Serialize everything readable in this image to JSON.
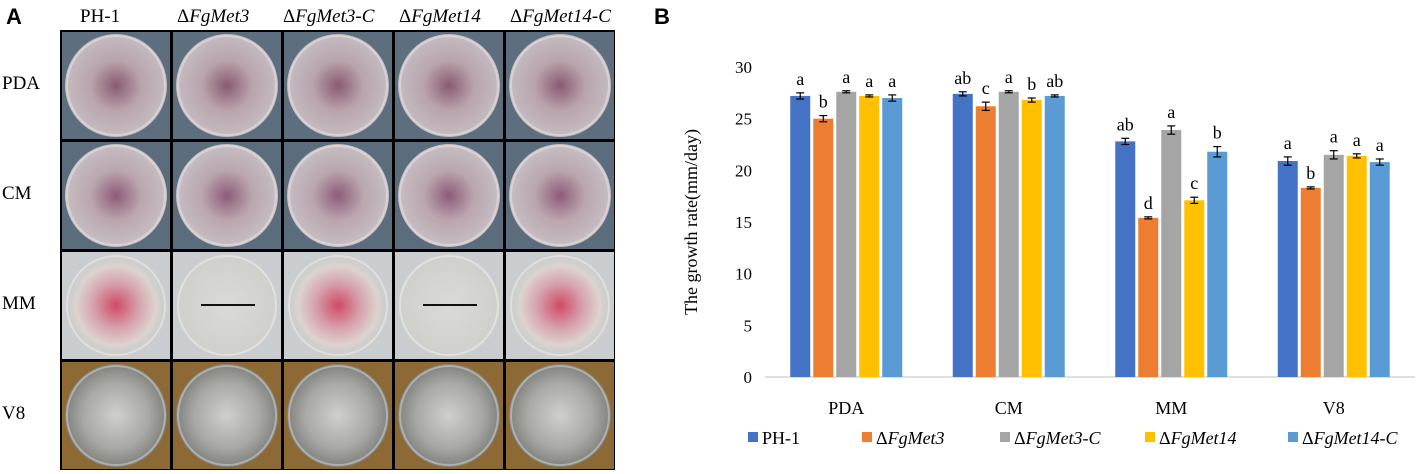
{
  "panel_a": {
    "letter": "A",
    "columns": [
      {
        "prefix": "",
        "name": "PH-1"
      },
      {
        "prefix": "Δ",
        "name": "FgMet3"
      },
      {
        "prefix": "Δ",
        "name": "FgMet3-C"
      },
      {
        "prefix": "Δ",
        "name": "FgMet14"
      },
      {
        "prefix": "Δ",
        "name": "FgMet14-C"
      }
    ],
    "rows": [
      "PDA",
      "CM",
      "MM",
      "V8"
    ]
  },
  "panel_b": {
    "letter": "B",
    "chart_data": {
      "type": "bar",
      "ylabel": "The growth rate(mm/day)",
      "xlabel": "",
      "ylim": [
        0,
        30
      ],
      "yticks": [
        0,
        5,
        10,
        15,
        20,
        25,
        30
      ],
      "categories": [
        "PDA",
        "CM",
        "MM",
        "V8"
      ],
      "legend_position": "bottom",
      "series": [
        {
          "name": "PH-1",
          "italic": false,
          "color": "#4472C4",
          "values": [
            27.2,
            27.4,
            22.8,
            20.9
          ],
          "errors": [
            0.3,
            0.2,
            0.3,
            0.4
          ],
          "letters": [
            "a",
            "ab",
            "ab",
            "a"
          ]
        },
        {
          "name": "ΔFgMet3",
          "italic": true,
          "color": "#ED7D31",
          "values": [
            25.0,
            26.2,
            15.4,
            18.3
          ],
          "errors": [
            0.3,
            0.4,
            0.1,
            0.1
          ],
          "letters": [
            "b",
            "c",
            "d",
            "b"
          ]
        },
        {
          "name": "ΔFgMet3-C",
          "italic": true,
          "color": "#A5A5A5",
          "values": [
            27.6,
            27.6,
            23.9,
            21.5
          ],
          "errors": [
            0.1,
            0.1,
            0.4,
            0.4
          ],
          "letters": [
            "a",
            "a",
            "a",
            "a"
          ]
        },
        {
          "name": "ΔFgMet14",
          "italic": true,
          "color": "#FFC000",
          "values": [
            27.2,
            26.8,
            17.1,
            21.4
          ],
          "errors": [
            0.1,
            0.2,
            0.3,
            0.2
          ],
          "letters": [
            "a",
            "b",
            "c",
            "a"
          ]
        },
        {
          "name": "ΔFgMet14-C",
          "italic": true,
          "color": "#5B9BD5",
          "values": [
            27.0,
            27.2,
            21.8,
            20.8
          ],
          "errors": [
            0.3,
            0.1,
            0.5,
            0.3
          ],
          "letters": [
            "a",
            "ab",
            "b",
            "a"
          ]
        }
      ]
    }
  },
  "plate_colors": {
    "PDA": {
      "center": "#8a5a72",
      "mid": "#b9a4ac",
      "edge": "#c7c2c6",
      "bg": "#5d6f7e"
    },
    "CM": {
      "center": "#8e5b78",
      "mid": "#baa6ae",
      "edge": "#c9c4c8",
      "bg": "#5b6d7c"
    },
    "MM_grow": {
      "center": "#d04a66",
      "mid": "#d6a3ad",
      "edge": "#dcd3cf",
      "bg": "#c9cdd0"
    },
    "MM_none": {
      "center": "#d7d6d2",
      "mid": "#cfcfcc",
      "edge": "#c8c8c6",
      "bg": "#c9cdd0"
    },
    "V8": {
      "center": "#cfcfcf",
      "mid": "#a8a9a6",
      "edge": "#7e7f7b",
      "bg": "#8d6a35"
    }
  }
}
